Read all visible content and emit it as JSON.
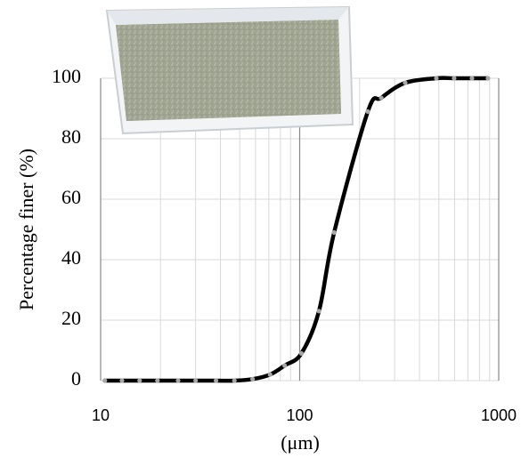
{
  "chart_data": {
    "type": "line",
    "x_label": "(μm)",
    "y_label": "Percentage finer (%)",
    "log_x": true,
    "grid": true,
    "xlim": [
      10,
      1000
    ],
    "xticks": [
      10,
      100,
      1000
    ],
    "x_minor_ticks": [
      20,
      30,
      40,
      50,
      60,
      70,
      80,
      90,
      200,
      300,
      400,
      500,
      600,
      700,
      800,
      900
    ],
    "ylim": [
      0,
      100
    ],
    "yticks": [
      0,
      20,
      40,
      60,
      80,
      100
    ],
    "series": [
      {
        "color": "#000000",
        "marker_color": "#a6a6a6",
        "x": [
          10.5,
          12.8,
          15.7,
          19.3,
          24.5,
          30,
          38,
          47,
          58,
          71,
          84,
          102,
          125,
          149,
          220,
          257,
          339,
          486,
          597,
          734,
          883
        ],
        "values": [
          0,
          0,
          0,
          0,
          0,
          0,
          0,
          0,
          0.5,
          2,
          5,
          9,
          23,
          49,
          89,
          93.5,
          98.5,
          100,
          100,
          100,
          100
        ]
      }
    ]
  }
}
